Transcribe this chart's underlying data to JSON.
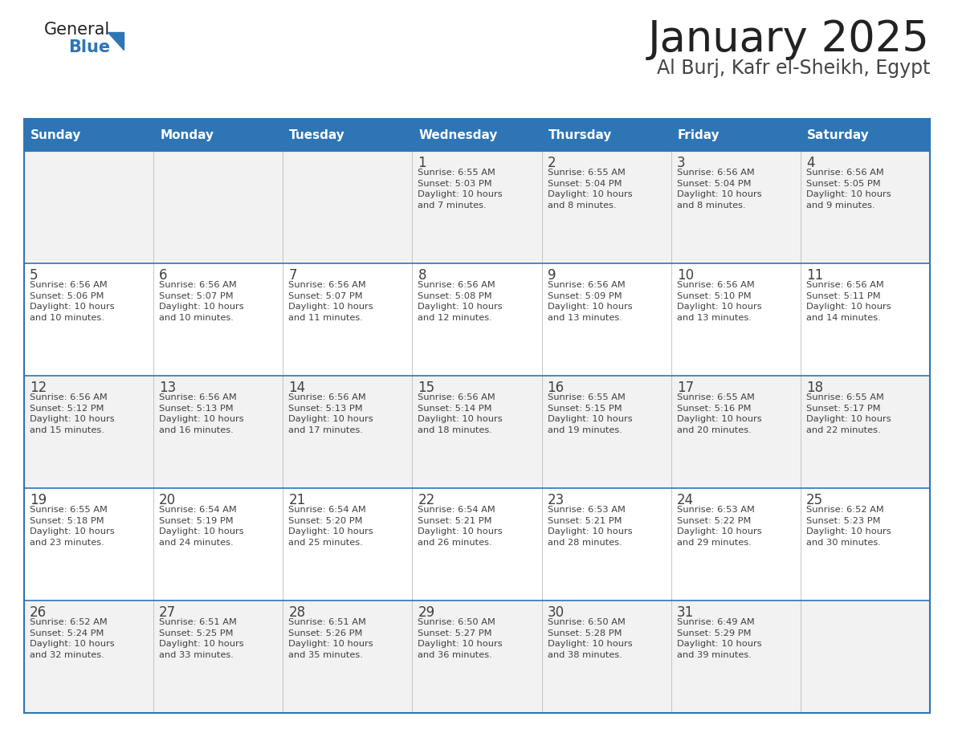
{
  "title": "January 2025",
  "subtitle": "Al Burj, Kafr el-Sheikh, Egypt",
  "header_color": "#2E75B6",
  "header_text_color": "#FFFFFF",
  "cell_bg_even": "#F2F2F2",
  "cell_bg_odd": "#FFFFFF",
  "border_color": "#2E75B6",
  "text_color": "#404040",
  "days_of_week": [
    "Sunday",
    "Monday",
    "Tuesday",
    "Wednesday",
    "Thursday",
    "Friday",
    "Saturday"
  ],
  "logo_general_color": "#222222",
  "logo_blue_color": "#2E75B6",
  "logo_triangle_color": "#2E75B6",
  "title_color": "#222222",
  "subtitle_color": "#444444",
  "calendar_data": [
    [
      {
        "day": "",
        "info": ""
      },
      {
        "day": "",
        "info": ""
      },
      {
        "day": "",
        "info": ""
      },
      {
        "day": "1",
        "info": "Sunrise: 6:55 AM\nSunset: 5:03 PM\nDaylight: 10 hours\nand 7 minutes."
      },
      {
        "day": "2",
        "info": "Sunrise: 6:55 AM\nSunset: 5:04 PM\nDaylight: 10 hours\nand 8 minutes."
      },
      {
        "day": "3",
        "info": "Sunrise: 6:56 AM\nSunset: 5:04 PM\nDaylight: 10 hours\nand 8 minutes."
      },
      {
        "day": "4",
        "info": "Sunrise: 6:56 AM\nSunset: 5:05 PM\nDaylight: 10 hours\nand 9 minutes."
      }
    ],
    [
      {
        "day": "5",
        "info": "Sunrise: 6:56 AM\nSunset: 5:06 PM\nDaylight: 10 hours\nand 10 minutes."
      },
      {
        "day": "6",
        "info": "Sunrise: 6:56 AM\nSunset: 5:07 PM\nDaylight: 10 hours\nand 10 minutes."
      },
      {
        "day": "7",
        "info": "Sunrise: 6:56 AM\nSunset: 5:07 PM\nDaylight: 10 hours\nand 11 minutes."
      },
      {
        "day": "8",
        "info": "Sunrise: 6:56 AM\nSunset: 5:08 PM\nDaylight: 10 hours\nand 12 minutes."
      },
      {
        "day": "9",
        "info": "Sunrise: 6:56 AM\nSunset: 5:09 PM\nDaylight: 10 hours\nand 13 minutes."
      },
      {
        "day": "10",
        "info": "Sunrise: 6:56 AM\nSunset: 5:10 PM\nDaylight: 10 hours\nand 13 minutes."
      },
      {
        "day": "11",
        "info": "Sunrise: 6:56 AM\nSunset: 5:11 PM\nDaylight: 10 hours\nand 14 minutes."
      }
    ],
    [
      {
        "day": "12",
        "info": "Sunrise: 6:56 AM\nSunset: 5:12 PM\nDaylight: 10 hours\nand 15 minutes."
      },
      {
        "day": "13",
        "info": "Sunrise: 6:56 AM\nSunset: 5:13 PM\nDaylight: 10 hours\nand 16 minutes."
      },
      {
        "day": "14",
        "info": "Sunrise: 6:56 AM\nSunset: 5:13 PM\nDaylight: 10 hours\nand 17 minutes."
      },
      {
        "day": "15",
        "info": "Sunrise: 6:56 AM\nSunset: 5:14 PM\nDaylight: 10 hours\nand 18 minutes."
      },
      {
        "day": "16",
        "info": "Sunrise: 6:55 AM\nSunset: 5:15 PM\nDaylight: 10 hours\nand 19 minutes."
      },
      {
        "day": "17",
        "info": "Sunrise: 6:55 AM\nSunset: 5:16 PM\nDaylight: 10 hours\nand 20 minutes."
      },
      {
        "day": "18",
        "info": "Sunrise: 6:55 AM\nSunset: 5:17 PM\nDaylight: 10 hours\nand 22 minutes."
      }
    ],
    [
      {
        "day": "19",
        "info": "Sunrise: 6:55 AM\nSunset: 5:18 PM\nDaylight: 10 hours\nand 23 minutes."
      },
      {
        "day": "20",
        "info": "Sunrise: 6:54 AM\nSunset: 5:19 PM\nDaylight: 10 hours\nand 24 minutes."
      },
      {
        "day": "21",
        "info": "Sunrise: 6:54 AM\nSunset: 5:20 PM\nDaylight: 10 hours\nand 25 minutes."
      },
      {
        "day": "22",
        "info": "Sunrise: 6:54 AM\nSunset: 5:21 PM\nDaylight: 10 hours\nand 26 minutes."
      },
      {
        "day": "23",
        "info": "Sunrise: 6:53 AM\nSunset: 5:21 PM\nDaylight: 10 hours\nand 28 minutes."
      },
      {
        "day": "24",
        "info": "Sunrise: 6:53 AM\nSunset: 5:22 PM\nDaylight: 10 hours\nand 29 minutes."
      },
      {
        "day": "25",
        "info": "Sunrise: 6:52 AM\nSunset: 5:23 PM\nDaylight: 10 hours\nand 30 minutes."
      }
    ],
    [
      {
        "day": "26",
        "info": "Sunrise: 6:52 AM\nSunset: 5:24 PM\nDaylight: 10 hours\nand 32 minutes."
      },
      {
        "day": "27",
        "info": "Sunrise: 6:51 AM\nSunset: 5:25 PM\nDaylight: 10 hours\nand 33 minutes."
      },
      {
        "day": "28",
        "info": "Sunrise: 6:51 AM\nSunset: 5:26 PM\nDaylight: 10 hours\nand 35 minutes."
      },
      {
        "day": "29",
        "info": "Sunrise: 6:50 AM\nSunset: 5:27 PM\nDaylight: 10 hours\nand 36 minutes."
      },
      {
        "day": "30",
        "info": "Sunrise: 6:50 AM\nSunset: 5:28 PM\nDaylight: 10 hours\nand 38 minutes."
      },
      {
        "day": "31",
        "info": "Sunrise: 6:49 AM\nSunset: 5:29 PM\nDaylight: 10 hours\nand 39 minutes."
      },
      {
        "day": "",
        "info": ""
      }
    ]
  ]
}
